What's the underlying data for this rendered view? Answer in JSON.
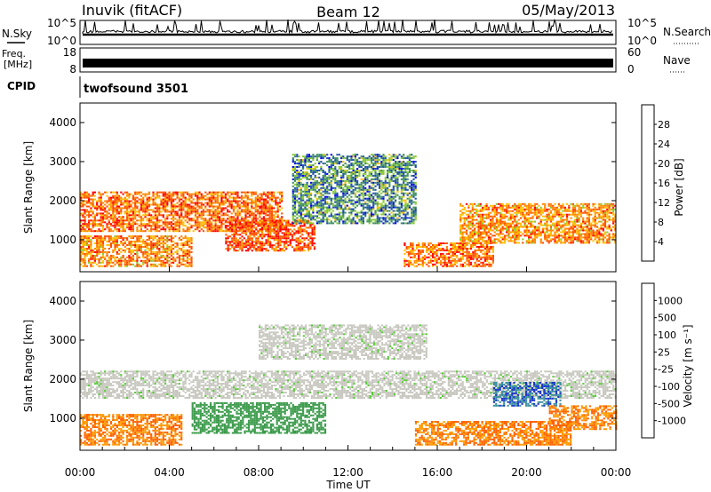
{
  "header": {
    "station": "Inuvik (fitACF)",
    "beam": "Beam 12",
    "date": "05/May/2013"
  },
  "nsky_panel": {
    "left_label": "N.Sky",
    "right_label": "N.Search",
    "ticks_left": [
      "10^5",
      "10^0"
    ],
    "ticks_right": [
      "10^5",
      "10^0"
    ]
  },
  "freq_panel": {
    "left_label_line1": "Freq.",
    "left_label_line2": "[MHz]",
    "right_label": "Nave",
    "ticks_left": [
      "18",
      "8"
    ],
    "ticks_right": [
      "60",
      "0"
    ]
  },
  "cpid_panel": {
    "label": "CPID",
    "program": "twofsound 3501"
  },
  "chart_data": [
    {
      "type": "heatmap",
      "parameter": "Power",
      "ylabel": "Slant Range [km]",
      "ylim": [
        180,
        4500
      ],
      "yticks": [
        "1000",
        "2000",
        "3000",
        "4000"
      ],
      "colorbar_label": "Power [dB]",
      "colorbar_ticks": [
        "28",
        "24",
        "20",
        "16",
        "12",
        "8",
        "4"
      ],
      "colorbar_colors": [
        "#ff0000",
        "#ff4f00",
        "#ff8800",
        "#ffc000",
        "#88cc33",
        "#3f8f5f",
        "#2050b0",
        "#0000ee"
      ],
      "regions": [
        {
          "t0": 0.0,
          "t1": 5.0,
          "r0": 300,
          "r1": 1100,
          "level": 20
        },
        {
          "t0": 0.0,
          "t1": 9.0,
          "r0": 1200,
          "r1": 2200,
          "level": 22
        },
        {
          "t0": 6.5,
          "t1": 10.5,
          "r0": 700,
          "r1": 1500,
          "level": 24
        },
        {
          "t0": 9.5,
          "t1": 15.0,
          "r0": 1400,
          "r1": 3200,
          "level": 8
        },
        {
          "t0": 14.5,
          "t1": 18.5,
          "r0": 300,
          "r1": 900,
          "level": 22
        },
        {
          "t0": 17.0,
          "t1": 24.0,
          "r0": 900,
          "r1": 1900,
          "level": 20
        }
      ]
    },
    {
      "type": "heatmap",
      "parameter": "Velocity",
      "ylabel": "Slant Range [km]",
      "ylim": [
        180,
        4500
      ],
      "yticks": [
        "1000",
        "2000",
        "3000",
        "4000"
      ],
      "colorbar_label": "Velocity [m s⁻¹]",
      "colorbar_ticks": [
        "1000",
        "500",
        "100",
        "25",
        "-25",
        "-100",
        "-500",
        "-1000"
      ],
      "colorbar_colors": [
        "#1a35cc",
        "#3c8fa0",
        "#3a9a4a",
        "#55cc33",
        "#c8c8c0",
        "#c8c8c0",
        "#ff9900",
        "#ff6000",
        "#ff0000"
      ],
      "regions": [
        {
          "t0": 0.0,
          "t1": 24.0,
          "r0": 1500,
          "r1": 2200,
          "level": 0
        },
        {
          "t0": 0.0,
          "t1": 4.5,
          "r0": 300,
          "r1": 1100,
          "level": -300
        },
        {
          "t0": 5.0,
          "t1": 11.0,
          "r0": 600,
          "r1": 1400,
          "level": 200
        },
        {
          "t0": 8.0,
          "t1": 15.5,
          "r0": 2500,
          "r1": 3400,
          "level": 0
        },
        {
          "t0": 15.0,
          "t1": 22.0,
          "r0": 300,
          "r1": 900,
          "level": -300
        },
        {
          "t0": 18.5,
          "t1": 21.5,
          "r0": 1300,
          "r1": 1900,
          "level": 700
        },
        {
          "t0": 21.0,
          "t1": 24.0,
          "r0": 700,
          "r1": 1300,
          "level": -300
        }
      ]
    }
  ],
  "x_axis": {
    "label": "Time UT",
    "range_hours": [
      0,
      24
    ],
    "ticks": [
      "00:00",
      "04:00",
      "08:00",
      "12:00",
      "16:00",
      "20:00",
      "00:00"
    ]
  }
}
